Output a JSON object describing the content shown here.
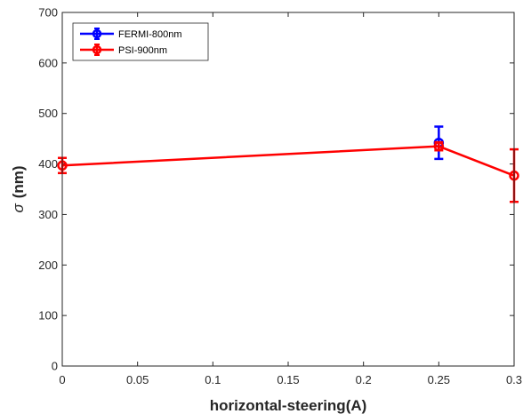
{
  "chart_data": {
    "type": "line",
    "title": "",
    "xlabel": "horizontal-steering(A)",
    "ylabel_symbol": "σ",
    "ylabel_unit": "(nm)",
    "xlim": [
      0,
      0.3
    ],
    "ylim": [
      0,
      700
    ],
    "xticks": [
      "0",
      "0.05",
      "0.1",
      "0.15",
      "0.2",
      "0.25",
      "0.3"
    ],
    "yticks": [
      "0",
      "100",
      "200",
      "300",
      "400",
      "500",
      "600",
      "700"
    ],
    "grid": false,
    "legend_position": "top-left",
    "series": [
      {
        "name": "FERMI-800nm",
        "color": "#0000ff",
        "points": [
          {
            "x": 0.25,
            "y": 442,
            "err": 32
          }
        ]
      },
      {
        "name": "PSI-900nm",
        "color": "#ff0000",
        "points": [
          {
            "x": 0,
            "y": 397,
            "err": 15
          },
          {
            "x": 0.25,
            "y": 435,
            "err": 8
          },
          {
            "x": 0.3,
            "y": 377,
            "err": 52
          }
        ]
      }
    ]
  }
}
